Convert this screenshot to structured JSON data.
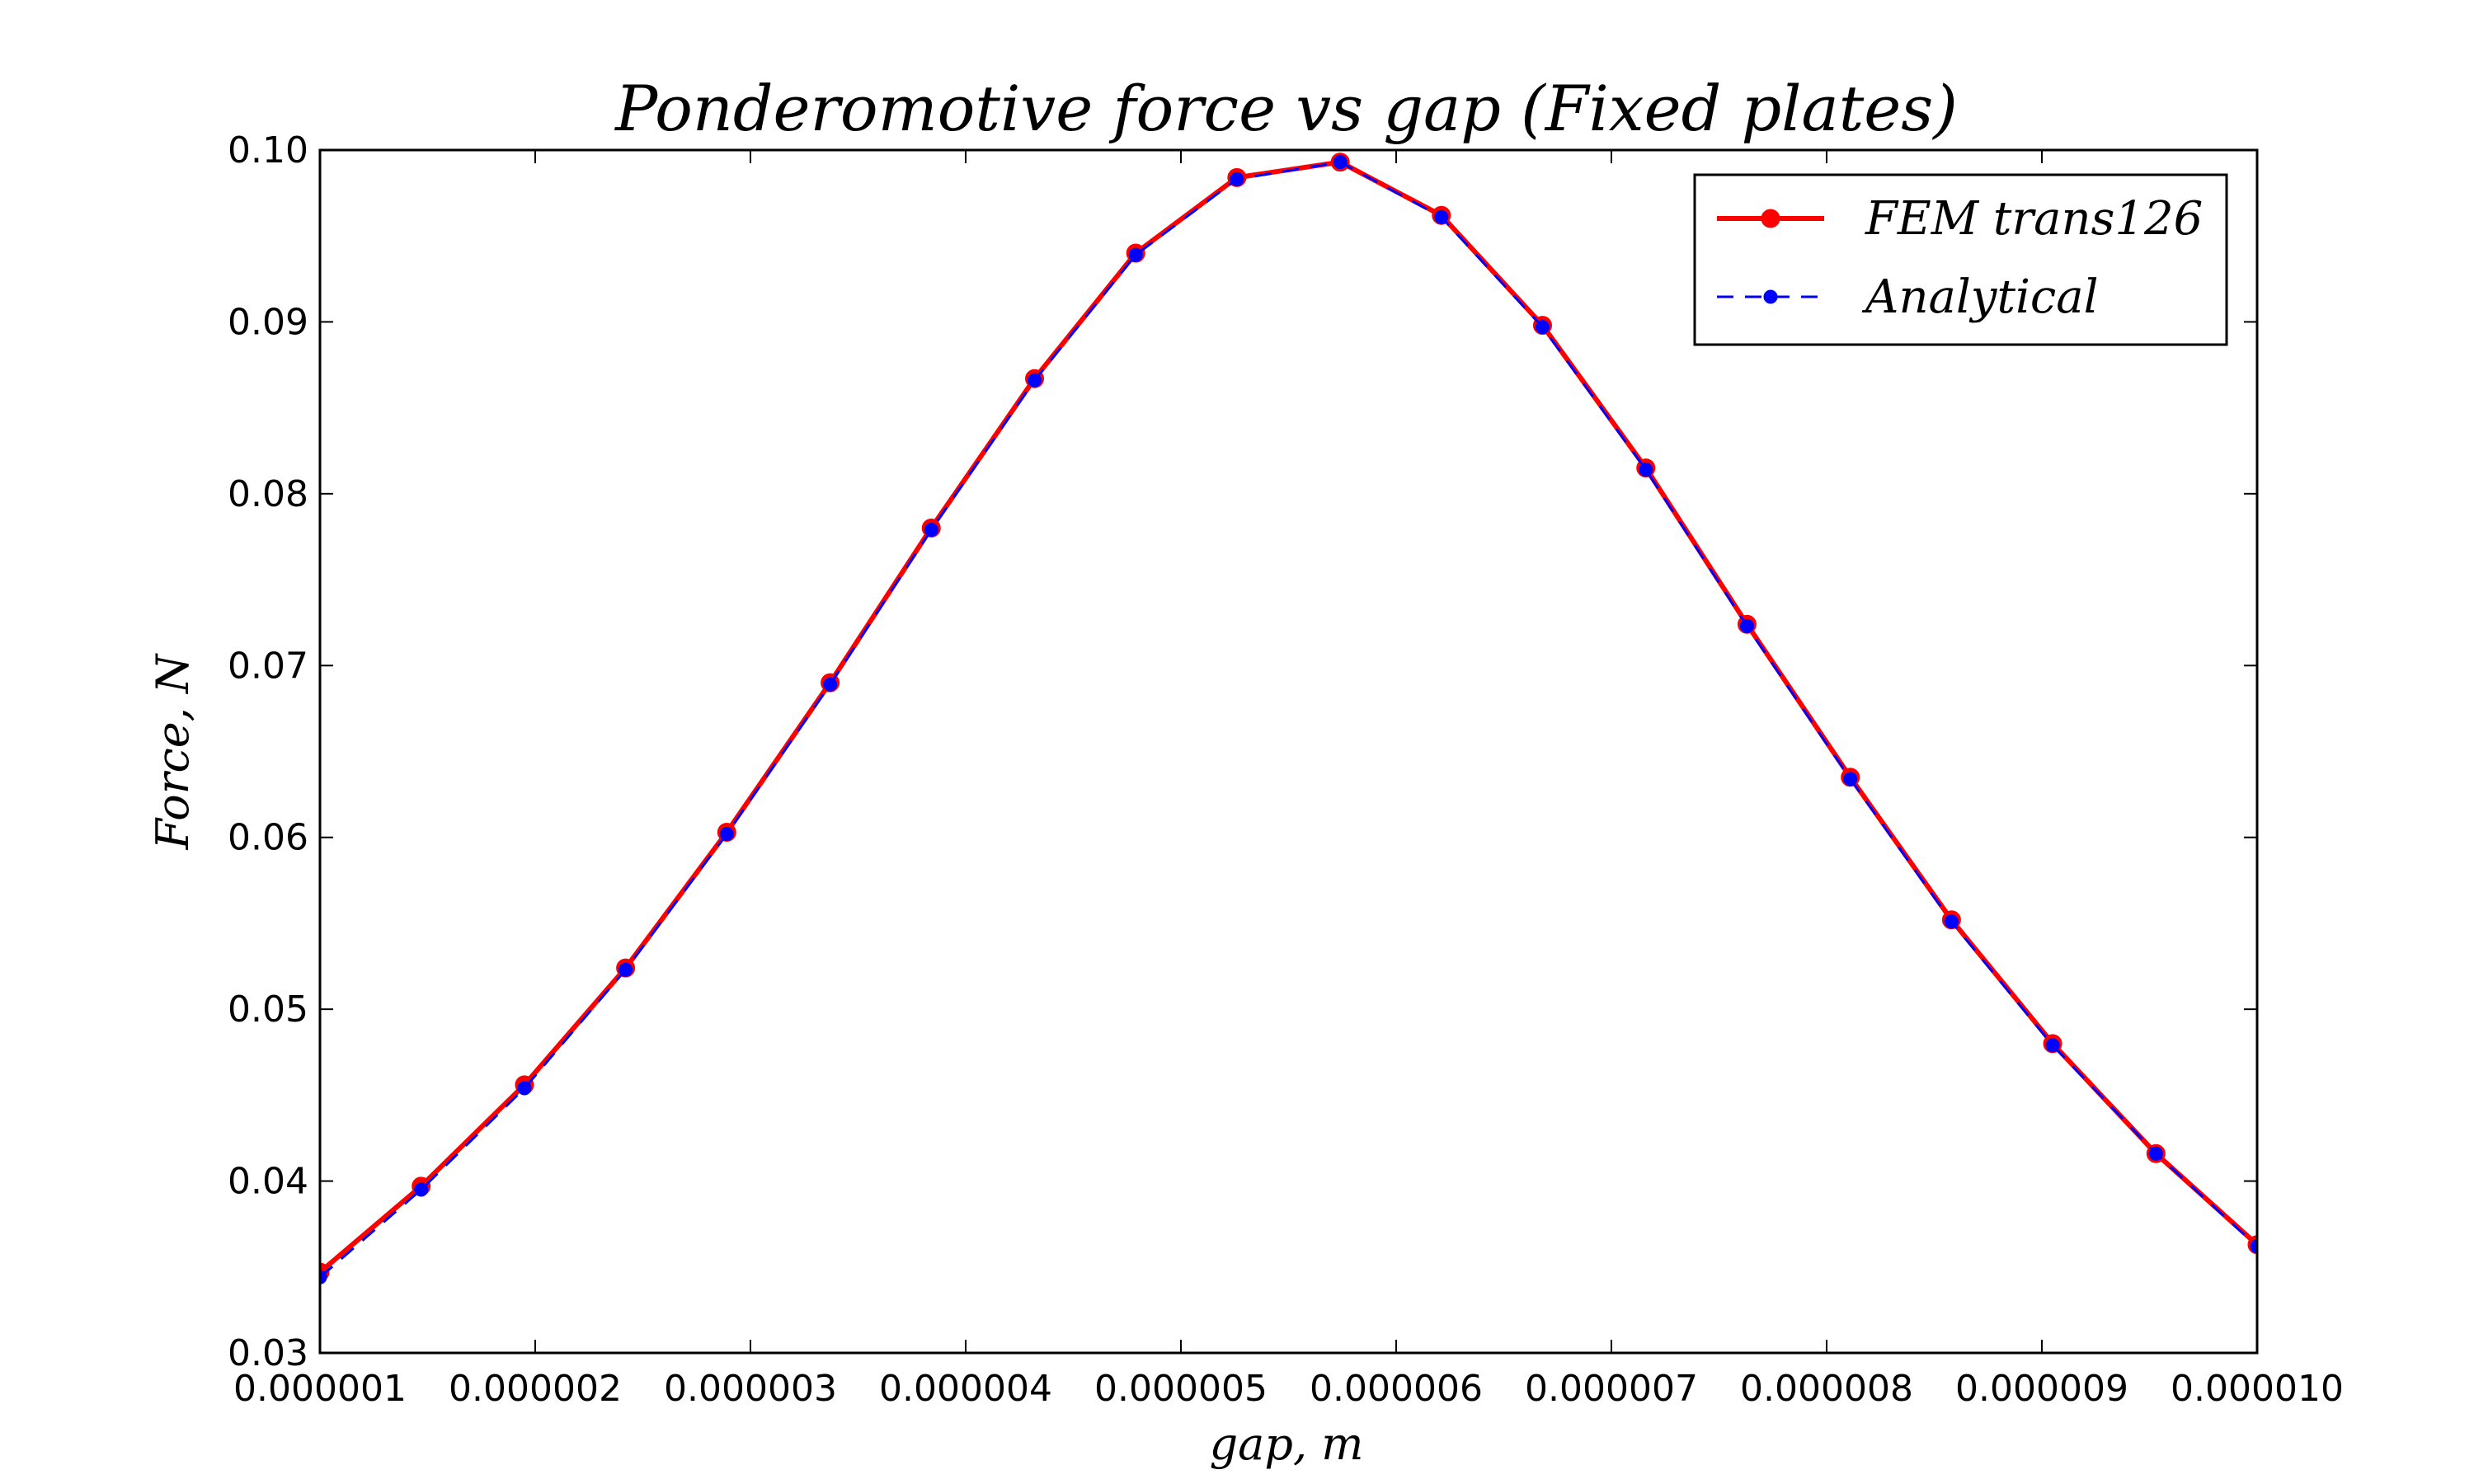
{
  "chart_data": {
    "type": "line",
    "title": "Ponderomotive force vs gap (Fixed plates)",
    "xlabel": "gap, m",
    "ylabel": "Force, N",
    "xlim": [
      1e-06,
      1e-05
    ],
    "ylim": [
      0.03,
      0.1
    ],
    "x_ticks": [
      "0.000001",
      "0.000002",
      "0.000003",
      "0.000004",
      "0.000005",
      "0.000006",
      "0.000007",
      "0.000008",
      "0.000009",
      "0.000010"
    ],
    "y_ticks": [
      "0.03",
      "0.04",
      "0.05",
      "0.06",
      "0.07",
      "0.08",
      "0.09",
      "0.10"
    ],
    "x_tick_values": [
      1e-06,
      2e-06,
      3e-06,
      4e-06,
      5e-06,
      6e-06,
      7e-06,
      8e-06,
      9e-06,
      1e-05
    ],
    "y_tick_values": [
      0.03,
      0.04,
      0.05,
      0.06,
      0.07,
      0.08,
      0.09,
      0.1
    ],
    "legend_position": "top-right",
    "grid": false,
    "x": [
      1e-06,
      1.47e-06,
      1.95e-06,
      2.42e-06,
      2.89e-06,
      3.37e-06,
      3.84e-06,
      4.32e-06,
      4.79e-06,
      5.26e-06,
      5.74e-06,
      6.21e-06,
      6.68e-06,
      7.16e-06,
      7.63e-06,
      8.11e-06,
      8.58e-06,
      9.05e-06,
      9.53e-06,
      1e-05
    ],
    "series": [
      {
        "name": "FEM trans126",
        "color": "#ff0000",
        "style": "solid",
        "marker": "circle",
        "values": [
          0.0347,
          0.0397,
          0.0456,
          0.0524,
          0.0603,
          0.069,
          0.078,
          0.0867,
          0.094,
          0.0984,
          0.0993,
          0.0962,
          0.0898,
          0.0815,
          0.0724,
          0.0635,
          0.0552,
          0.048,
          0.0416,
          0.0363
        ]
      },
      {
        "name": "Analytical",
        "color": "#0000ff",
        "style": "dashed",
        "marker": "circle",
        "values": [
          0.0344,
          0.0395,
          0.0454,
          0.0523,
          0.0602,
          0.0689,
          0.0779,
          0.0866,
          0.0939,
          0.0983,
          0.0993,
          0.0961,
          0.0897,
          0.0814,
          0.0723,
          0.0634,
          0.0551,
          0.0479,
          0.0416,
          0.0362
        ]
      }
    ]
  }
}
